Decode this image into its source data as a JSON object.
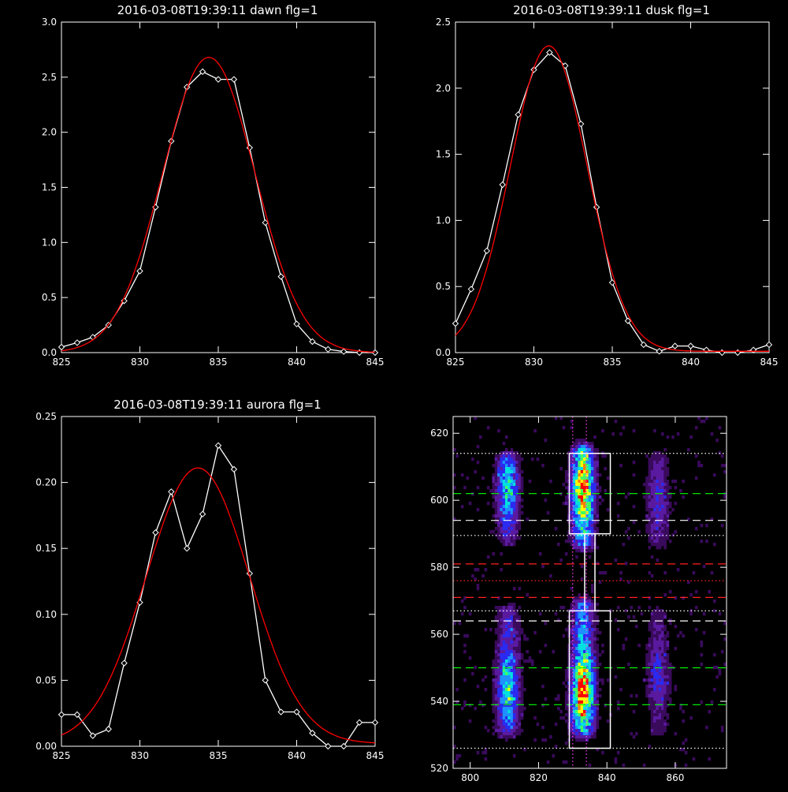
{
  "charts": [
    {
      "type": "line",
      "title": "2016-03-08T19:39:11 dawn flg=1",
      "xlim": [
        825,
        845
      ],
      "ylim": [
        0,
        3.0
      ],
      "xticks": [
        "825",
        "830",
        "835",
        "840",
        "845"
      ],
      "yticks": [
        "0.0",
        "0.5",
        "1.0",
        "1.5",
        "2.0",
        "2.5",
        "3.0"
      ],
      "series": [
        {
          "kind": "data",
          "color": "#ffffff",
          "marker": "diamond",
          "x": [
            825,
            826,
            827,
            828,
            829,
            830,
            831,
            832,
            833,
            834,
            835,
            836,
            837,
            838,
            839,
            840,
            841,
            842,
            843,
            844,
            845
          ],
          "y": [
            0.05,
            0.09,
            0.14,
            0.25,
            0.47,
            0.74,
            1.32,
            1.92,
            2.41,
            2.55,
            2.48,
            2.48,
            1.86,
            1.18,
            0.69,
            0.26,
            0.1,
            0.03,
            0.01,
            0.0,
            0.0
          ]
        },
        {
          "kind": "fit",
          "color": "#ff0000",
          "shape": "gaussian",
          "amp": 2.68,
          "center": 834.4,
          "sigma": 2.95,
          "offset": 0.0
        }
      ]
    },
    {
      "type": "line",
      "title": "2016-03-08T19:39:11 dusk flg=1",
      "xlim": [
        825,
        845
      ],
      "ylim": [
        0,
        2.5
      ],
      "xticks": [
        "825",
        "830",
        "835",
        "840",
        "845"
      ],
      "yticks": [
        "0.0",
        "0.5",
        "1.0",
        "1.5",
        "2.0",
        "2.5"
      ],
      "series": [
        {
          "kind": "data",
          "color": "#ffffff",
          "marker": "diamond",
          "x": [
            825,
            826,
            827,
            828,
            829,
            830,
            831,
            832,
            833,
            834,
            835,
            836,
            837,
            838,
            839,
            840,
            841,
            842,
            843,
            844,
            845
          ],
          "y": [
            0.22,
            0.48,
            0.77,
            1.27,
            1.8,
            2.14,
            2.27,
            2.17,
            1.73,
            1.1,
            0.53,
            0.24,
            0.06,
            0.01,
            0.05,
            0.05,
            0.02,
            0.0,
            0.0,
            0.02,
            0.06
          ]
        },
        {
          "kind": "fit",
          "color": "#ff0000",
          "shape": "gaussian",
          "amp": 2.31,
          "center": 830.95,
          "sigma": 2.45,
          "offset": 0.01
        }
      ]
    },
    {
      "type": "line",
      "title": "2016-03-08T19:39:11 aurora flg=1",
      "xlim": [
        825,
        845
      ],
      "ylim": [
        0,
        0.25
      ],
      "xticks": [
        "825",
        "830",
        "835",
        "840",
        "845"
      ],
      "yticks": [
        "0.00",
        "0.05",
        "0.10",
        "0.15",
        "0.20",
        "0.25"
      ],
      "series": [
        {
          "kind": "data",
          "color": "#ffffff",
          "marker": "diamond",
          "x": [
            825,
            826,
            827,
            828,
            829,
            830,
            831,
            832,
            833,
            834,
            835,
            836,
            837,
            838,
            839,
            840,
            841,
            842,
            843,
            844,
            845
          ],
          "y": [
            0.024,
            0.024,
            0.008,
            0.013,
            0.063,
            0.109,
            0.162,
            0.193,
            0.15,
            0.176,
            0.228,
            0.21,
            0.131,
            0.05,
            0.026,
            0.026,
            0.01,
            0.0,
            0.0,
            0.018,
            0.018
          ]
        },
        {
          "kind": "fit",
          "color": "#ff0000",
          "shape": "gaussian",
          "amp": 0.209,
          "center": 833.7,
          "sigma": 3.3,
          "offset": 0.002
        }
      ]
    },
    {
      "type": "heatmap",
      "title": "",
      "xlim": [
        795,
        875
      ],
      "ylim": [
        520,
        625
      ],
      "xticks": [
        "800",
        "820",
        "840",
        "860"
      ],
      "ytick_values": [
        520,
        540,
        560,
        580,
        600,
        620
      ],
      "yticks": [
        "520",
        "540",
        "560",
        "580",
        "600",
        "620"
      ],
      "colormap": [
        "#000000",
        "#3a0a5c",
        "#5a1aa0",
        "#2a2af0",
        "#1e90ff",
        "#00e0e0",
        "#40ff60",
        "#ffff00",
        "#ff7f00",
        "#ff0000"
      ],
      "emission_columns": [
        {
          "x_center": 811,
          "bands": [
            {
              "y": [
                590,
                612
              ],
              "peak": 0.55,
              "center": 604
            },
            {
              "y": [
                532,
                566
              ],
              "peak": 0.6,
              "center": 543
            }
          ]
        },
        {
          "x_center": 833,
          "bands": [
            {
              "y": [
                588,
                614
              ],
              "peak": 0.95,
              "center": 604
            },
            {
              "y": [
                532,
                568
              ],
              "peak": 1.0,
              "center": 543
            }
          ]
        },
        {
          "x_center": 855,
          "bands": [
            {
              "y": [
                588,
                612
              ],
              "peak": 0.3,
              "center": 600
            },
            {
              "y": [
                532,
                566
              ],
              "peak": 0.3,
              "center": 548
            }
          ]
        }
      ],
      "boxes": [
        {
          "x": [
            829,
            841
          ],
          "y": [
            590,
            614
          ]
        },
        {
          "x": [
            829,
            841
          ],
          "y": [
            526,
            567
          ]
        },
        {
          "x": [
            833.5,
            836.5
          ],
          "y": [
            567,
            590
          ]
        }
      ],
      "vlines_dotted": [
        {
          "x": 830,
          "color": "#ff40ff"
        },
        {
          "x": 834,
          "color": "#ff40ff"
        }
      ],
      "hlines": [
        {
          "y": 614,
          "color": "#ffffff",
          "style": "dotted"
        },
        {
          "y": 602,
          "color": "#00ff00",
          "style": "dashed"
        },
        {
          "y": 594,
          "color": "#ffffff",
          "style": "dashed"
        },
        {
          "y": 589.5,
          "color": "#ffffff",
          "style": "dotted"
        },
        {
          "y": 581,
          "color": "#ff2020",
          "style": "dashed"
        },
        {
          "y": 576,
          "color": "#ff2020",
          "style": "dotted"
        },
        {
          "y": 571,
          "color": "#ff2020",
          "style": "dashed"
        },
        {
          "y": 567,
          "color": "#ffffff",
          "style": "dotted"
        },
        {
          "y": 564,
          "color": "#ffffff",
          "style": "dashed"
        },
        {
          "y": 550,
          "color": "#00ff00",
          "style": "dashed"
        },
        {
          "y": 539,
          "color": "#00ff00",
          "style": "dashed"
        },
        {
          "y": 526,
          "color": "#ffffff",
          "style": "dotted"
        }
      ]
    }
  ]
}
